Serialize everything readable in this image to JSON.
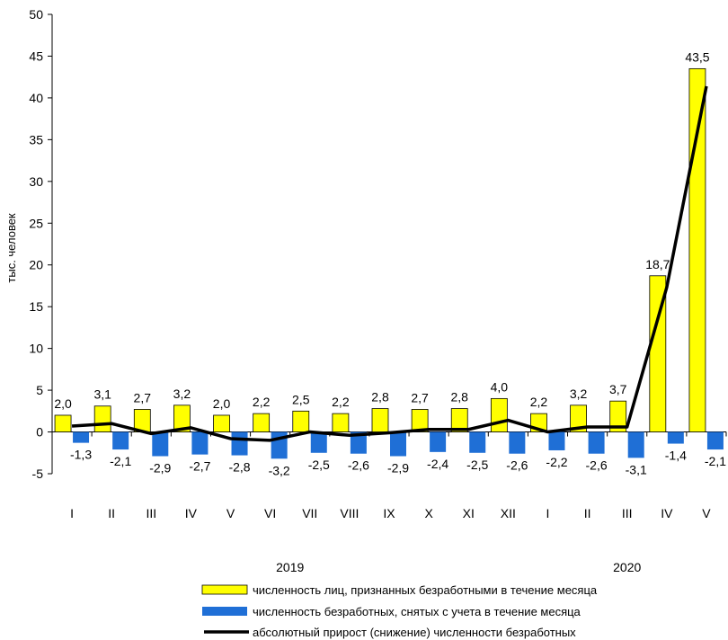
{
  "chart_data": {
    "type": "bar",
    "ylabel": "тыс. человек",
    "ylim": [
      -5,
      50
    ],
    "yticks": [
      -5,
      0,
      5,
      10,
      15,
      20,
      25,
      30,
      35,
      40,
      45,
      50
    ],
    "categories": [
      "I",
      "II",
      "III",
      "IV",
      "V",
      "VI",
      "VII",
      "VIII",
      "IX",
      "X",
      "XI",
      "XII",
      "I",
      "II",
      "III",
      "IV",
      "V"
    ],
    "year_groups": [
      {
        "label": "2019",
        "from": 0,
        "to": 11
      },
      {
        "label": "2020",
        "from": 12,
        "to": 16
      }
    ],
    "series": [
      {
        "name": "численность лиц, признанных безработными в течение месяца",
        "kind": "bar",
        "color": "#ffff00",
        "values": [
          2.0,
          3.1,
          2.7,
          3.2,
          2.0,
          2.2,
          2.5,
          2.2,
          2.8,
          2.7,
          2.8,
          4.0,
          2.2,
          3.2,
          3.7,
          18.7,
          43.5
        ],
        "labels": [
          "2,0",
          "3,1",
          "2,7",
          "3,2",
          "2,0",
          "2,2",
          "2,5",
          "2,2",
          "2,8",
          "2,7",
          "2,8",
          "4,0",
          "2,2",
          "3,2",
          "3,7",
          "18,7",
          "43,5"
        ]
      },
      {
        "name": "численность безработных, снятых с учета в течение месяца",
        "kind": "bar",
        "color": "#1f6fd6",
        "values": [
          -1.3,
          -2.1,
          -2.9,
          -2.7,
          -2.8,
          -3.2,
          -2.5,
          -2.6,
          -2.9,
          -2.4,
          -2.5,
          -2.6,
          -2.2,
          -2.6,
          -3.1,
          -1.4,
          -2.1
        ],
        "labels": [
          "-1,3",
          "-2,1",
          "-2,9",
          "-2,7",
          "-2,8",
          "-3,2",
          "-2,5",
          "-2,6",
          "-2,9",
          "-2,4",
          "-2,5",
          "-2,6",
          "-2,2",
          "-2,6",
          "-3,1",
          "-1,4",
          "-2,1"
        ]
      },
      {
        "name": "абсолютный прирост (снижение) численности безработных",
        "kind": "line",
        "color": "#000000",
        "values": [
          0.7,
          1.0,
          -0.2,
          0.5,
          -0.8,
          -1.0,
          0.0,
          -0.4,
          -0.1,
          0.3,
          0.3,
          1.4,
          0.0,
          0.6,
          0.6,
          17.3,
          41.4
        ]
      }
    ],
    "grid": false,
    "legend_position": "bottom"
  }
}
